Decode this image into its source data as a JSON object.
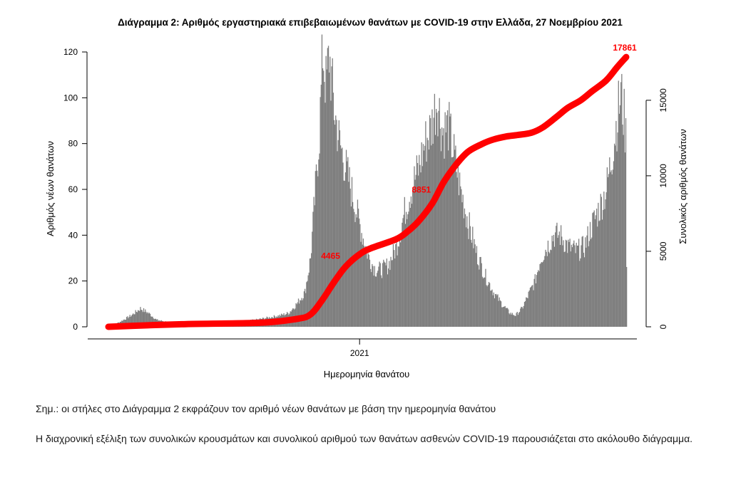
{
  "chart_data": {
    "type": "bar",
    "title": "Διάγραμμα 2: Αριθμός εργαστηριακά επιβεβαιωμένων θανάτων με COVID-19 στην Ελλάδα, 27 Νοεμβρίου 2021",
    "xlabel": "Ημερομηνία θανάτου",
    "ylabel_left": "Αριθμός νέων θανάτων",
    "ylabel_right": "Συνολικός αριθμός θανάτων",
    "x_tick_labels": [
      "2021"
    ],
    "x_ticks": [
      {
        "label": "2021",
        "x": "2021-01-01"
      }
    ],
    "xlim": [
      "2020-02-26",
      "2021-11-26"
    ],
    "ylim_left": [
      0,
      120
    ],
    "ylim_right": [
      0,
      18000
    ],
    "yticks_left": [
      0,
      20,
      40,
      60,
      80,
      100,
      120
    ],
    "yticks_right": [
      0,
      5000,
      10000,
      15000
    ],
    "right_axis_range": [
      0,
      15000
    ],
    "bar_color": "#7f7f7f",
    "line_color": "#ff0000",
    "keypoints_daily": [
      [
        "2020-02-26",
        0
      ],
      [
        "2020-03-10",
        2
      ],
      [
        "2020-03-25",
        5
      ],
      [
        "2020-04-05",
        8
      ],
      [
        "2020-04-15",
        6
      ],
      [
        "2020-04-25",
        3
      ],
      [
        "2020-05-10",
        2
      ],
      [
        "2020-06-01",
        1
      ],
      [
        "2020-07-01",
        1
      ],
      [
        "2020-08-01",
        2
      ],
      [
        "2020-08-25",
        3
      ],
      [
        "2020-09-10",
        4
      ],
      [
        "2020-09-25",
        5
      ],
      [
        "2020-10-05",
        6
      ],
      [
        "2020-10-15",
        10
      ],
      [
        "2020-10-25",
        15
      ],
      [
        "2020-11-01",
        30
      ],
      [
        "2020-11-07",
        60
      ],
      [
        "2020-11-12",
        85
      ],
      [
        "2020-11-16",
        121
      ],
      [
        "2020-11-20",
        105
      ],
      [
        "2020-11-24",
        119
      ],
      [
        "2020-11-30",
        95
      ],
      [
        "2020-12-07",
        80
      ],
      [
        "2020-12-14",
        70
      ],
      [
        "2020-12-21",
        60
      ],
      [
        "2020-12-28",
        50
      ],
      [
        "2021-01-04",
        40
      ],
      [
        "2021-01-12",
        30
      ],
      [
        "2021-01-20",
        25
      ],
      [
        "2021-01-28",
        25
      ],
      [
        "2021-02-05",
        27
      ],
      [
        "2021-02-15",
        35
      ],
      [
        "2021-02-25",
        50
      ],
      [
        "2021-03-05",
        60
      ],
      [
        "2021-03-15",
        70
      ],
      [
        "2021-03-22",
        80
      ],
      [
        "2021-03-30",
        87
      ],
      [
        "2021-04-06",
        100
      ],
      [
        "2021-04-13",
        85
      ],
      [
        "2021-04-20",
        88
      ],
      [
        "2021-04-27",
        75
      ],
      [
        "2021-05-05",
        60
      ],
      [
        "2021-05-15",
        45
      ],
      [
        "2021-05-25",
        32
      ],
      [
        "2021-06-05",
        22
      ],
      [
        "2021-06-15",
        15
      ],
      [
        "2021-06-25",
        10
      ],
      [
        "2021-07-05",
        6
      ],
      [
        "2021-07-12",
        5
      ],
      [
        "2021-07-20",
        8
      ],
      [
        "2021-07-28",
        14
      ],
      [
        "2021-08-05",
        20
      ],
      [
        "2021-08-12",
        30
      ],
      [
        "2021-08-20",
        35
      ],
      [
        "2021-08-28",
        40
      ],
      [
        "2021-09-05",
        40
      ],
      [
        "2021-09-15",
        35
      ],
      [
        "2021-09-25",
        33
      ],
      [
        "2021-10-05",
        35
      ],
      [
        "2021-10-15",
        45
      ],
      [
        "2021-10-25",
        53
      ],
      [
        "2021-11-01",
        60
      ],
      [
        "2021-11-08",
        75
      ],
      [
        "2021-11-14",
        90
      ],
      [
        "2021-11-19",
        102
      ],
      [
        "2021-11-23",
        91
      ],
      [
        "2021-11-25",
        83
      ],
      [
        "2021-11-26",
        30
      ]
    ],
    "keypoints_cumulative": [
      [
        "2020-02-26",
        0
      ],
      [
        "2020-04-15",
        100
      ],
      [
        "2020-06-01",
        180
      ],
      [
        "2020-09-01",
        270
      ],
      [
        "2020-10-15",
        520
      ],
      [
        "2020-11-01",
        800
      ],
      [
        "2020-11-15",
        1700
      ],
      [
        "2020-12-01",
        3000
      ],
      [
        "2020-12-15",
        4000
      ],
      [
        "2021-01-01",
        4800
      ],
      [
        "2021-01-15",
        5200
      ],
      [
        "2021-02-15",
        5800
      ],
      [
        "2021-03-01",
        6300
      ],
      [
        "2021-03-15",
        7000
      ],
      [
        "2021-04-01",
        8200
      ],
      [
        "2021-04-15",
        9600
      ],
      [
        "2021-05-01",
        10800
      ],
      [
        "2021-05-15",
        11600
      ],
      [
        "2021-06-01",
        12100
      ],
      [
        "2021-06-15",
        12400
      ],
      [
        "2021-07-01",
        12600
      ],
      [
        "2021-07-15",
        12700
      ],
      [
        "2021-08-01",
        12850
      ],
      [
        "2021-08-15",
        13200
      ],
      [
        "2021-09-01",
        13900
      ],
      [
        "2021-09-15",
        14500
      ],
      [
        "2021-10-01",
        15000
      ],
      [
        "2021-10-15",
        15600
      ],
      [
        "2021-11-01",
        16300
      ],
      [
        "2021-11-15",
        17200
      ],
      [
        "2021-11-26",
        17861
      ]
    ],
    "annotations": [
      {
        "text": "17861",
        "date": "2021-11-26",
        "value": 17861,
        "color": "#ff0000"
      },
      {
        "text": "4465",
        "date": "2020-12-08",
        "value": 4465,
        "color": "#ff0000"
      },
      {
        "text": "8851",
        "date": "2021-03-30",
        "value": 8851,
        "color": "#ff0000"
      }
    ]
  },
  "footer": {
    "note": "Σημ.: οι στήλες στο Διάγραμμα 2 εκφράζουν τον αριθμό νέων θανάτων με βάση την ημερομηνία θανάτου",
    "paragraph": "Η διαχρονική εξέλιξη των συνολικών κρουσμάτων και συνολικού αριθμού των θανάτων ασθενών COVID-19 παρουσιάζεται στο ακόλουθο διάγραμμα."
  }
}
